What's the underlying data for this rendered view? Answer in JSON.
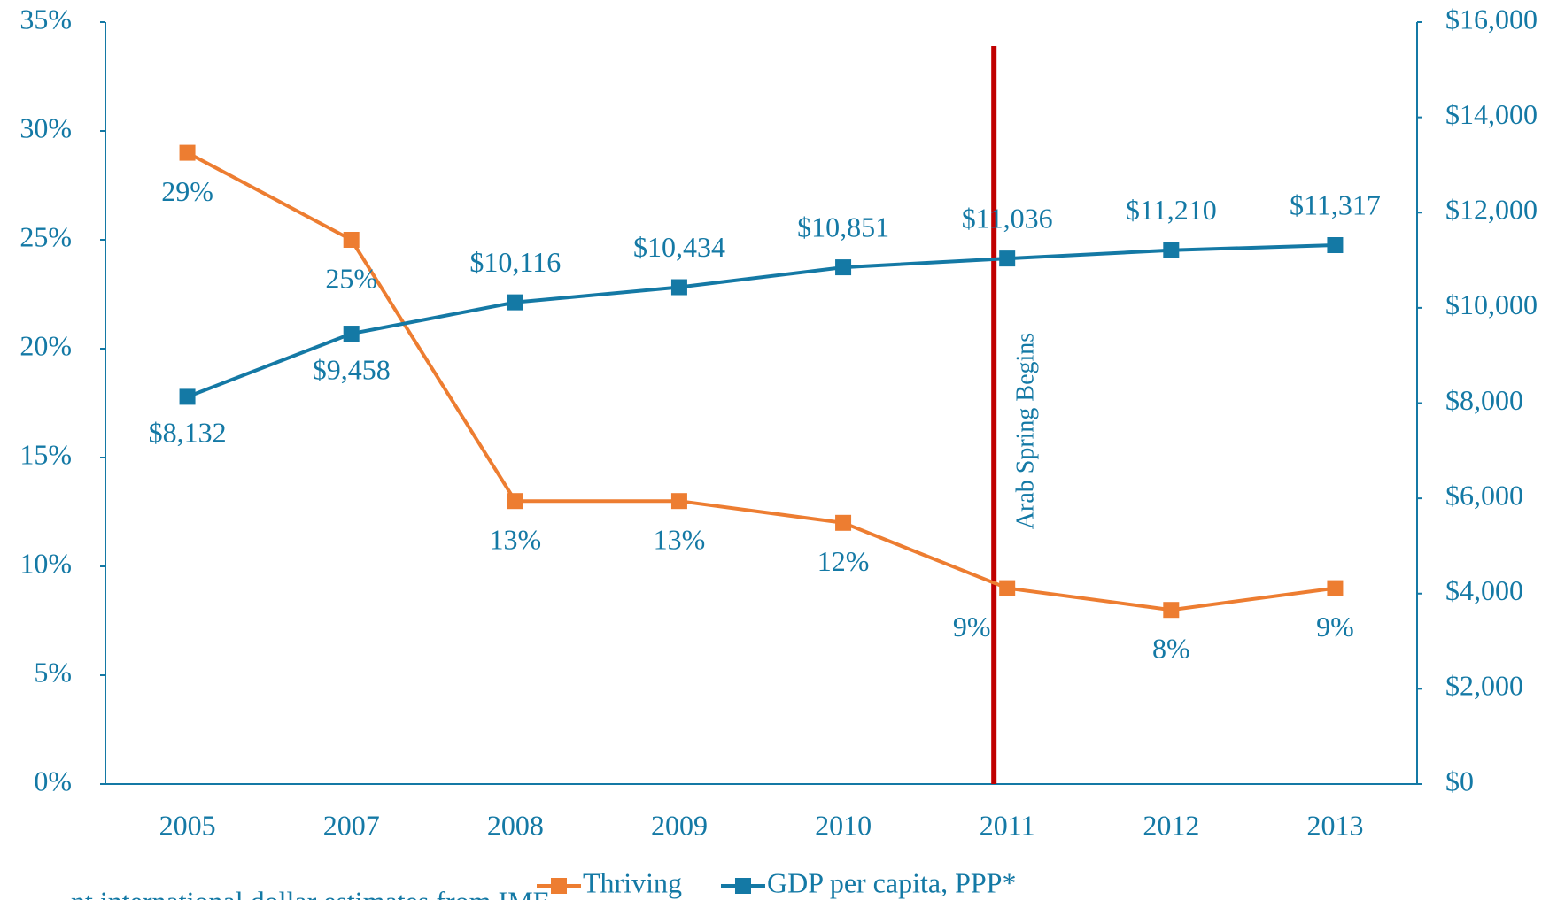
{
  "chart_data": {
    "type": "line",
    "annotation": "Arab Spring Begins",
    "footnote": "nt international dollar estimates from IMF",
    "categories": [
      "2005",
      "2007",
      "2008",
      "2009",
      "2010",
      "2011",
      "2012",
      "2013"
    ],
    "series": [
      {
        "name": "Thriving",
        "color": "#ed7d31",
        "values": [
          29,
          25,
          13,
          13,
          12,
          9,
          8,
          9
        ],
        "value_labels": [
          "29%",
          "25%",
          "13%",
          "13%",
          "12%",
          "9%",
          "8%",
          "9%"
        ]
      },
      {
        "name": "GDP per capita, PPP*",
        "color": "#1479a5",
        "axis": "y2",
        "values": [
          8132,
          9458,
          10116,
          10434,
          10851,
          11036,
          11210,
          11317
        ],
        "value_labels": [
          "$8,132",
          "$9,458",
          "$10,116",
          "$10,434",
          "$10,851",
          "$11,036",
          "$11,210",
          "$11,317"
        ]
      }
    ],
    "annotation_color": "#c00000",
    "annotation_category": "2011",
    "ylim": [
      0,
      35
    ],
    "yticks": [
      {
        "value": 0,
        "label": "0%"
      },
      {
        "value": 5,
        "label": "5%"
      },
      {
        "value": 10,
        "label": "10%"
      },
      {
        "value": 15,
        "label": "15%"
      },
      {
        "value": 20,
        "label": "20%"
      },
      {
        "value": 25,
        "label": "25%"
      },
      {
        "value": 30,
        "label": "30%"
      },
      {
        "value": 35,
        "label": "35%"
      }
    ],
    "y2lim": [
      0,
      16000
    ],
    "y2ticks": [
      {
        "value": 0,
        "label": "$0"
      },
      {
        "value": 2000,
        "label": "$2,000"
      },
      {
        "value": 4000,
        "label": "$4,000"
      },
      {
        "value": 6000,
        "label": "$6,000"
      },
      {
        "value": 8000,
        "label": "$8,000"
      },
      {
        "value": 10000,
        "label": "$10,000"
      },
      {
        "value": 12000,
        "label": "$12,000"
      },
      {
        "value": 14000,
        "label": "$14,000"
      },
      {
        "value": 16000,
        "label": "$16,000"
      }
    ],
    "grid": false,
    "legend": "bottom"
  }
}
